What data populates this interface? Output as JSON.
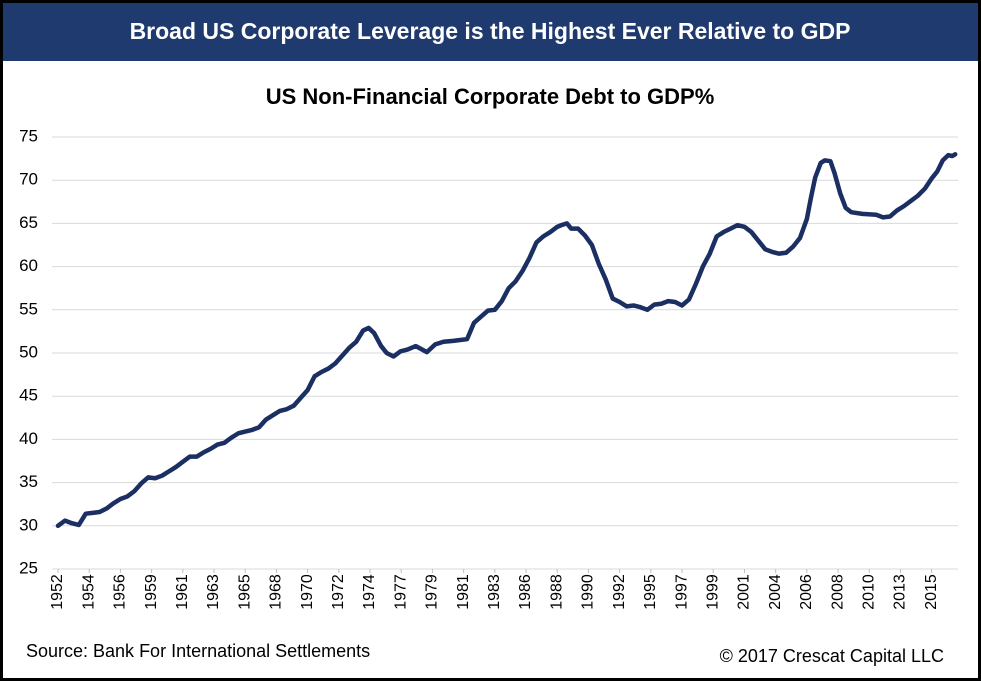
{
  "chart_data": {
    "type": "line",
    "banner": "Broad US Corporate Leverage is the Highest Ever Relative to GDP",
    "title": "US Non-Financial Corporate Debt to GDP%",
    "source": "Source: Bank For International Settlements",
    "copyright": "© 2017 Crescat Capital LLC",
    "x": [
      1952,
      1952.5,
      1953,
      1953.5,
      1954,
      1954.5,
      1955,
      1955.5,
      1956,
      1956.5,
      1957,
      1957.5,
      1958,
      1958.5,
      1959,
      1959.5,
      1960,
      1960.5,
      1961,
      1961.5,
      1962,
      1962.5,
      1963,
      1963.5,
      1964,
      1964.5,
      1965,
      1965.5,
      1966,
      1966.5,
      1967,
      1967.5,
      1968,
      1968.5,
      1969,
      1969.5,
      1970,
      1970.5,
      1971,
      1971.5,
      1972,
      1972.5,
      1973,
      1973.5,
      1974,
      1974.4,
      1974.8,
      1975.3,
      1975.7,
      1976.2,
      1976.7,
      1977.2,
      1977.8,
      1978.6,
      1979.2,
      1979.8,
      1980.5,
      1981,
      1981.5,
      1982,
      1982.5,
      1983,
      1983.5,
      1984,
      1984.5,
      1985,
      1985.5,
      1986,
      1986.5,
      1987,
      1987.5,
      1988,
      1988.3,
      1988.7,
      1989,
      1989.5,
      1990,
      1990.5,
      1991,
      1991.5,
      1992,
      1992.5,
      1993,
      1993.5,
      1994,
      1994.5,
      1995,
      1995.5,
      1996,
      1996.5,
      1997,
      1997.5,
      1998,
      1998.5,
      1999,
      1999.5,
      2000,
      2000.5,
      2001,
      2001.5,
      2002,
      2002.5,
      2003,
      2003.5,
      2004,
      2004.5,
      2005,
      2005.5,
      2006,
      2006.3,
      2006.6,
      2007,
      2007.3,
      2007.7,
      2008,
      2008.4,
      2008.8,
      2009.2,
      2010,
      2011,
      2011.5,
      2012,
      2012.5,
      2013,
      2013.5,
      2014,
      2014.5,
      2015,
      2015.4,
      2015.8,
      2016.2,
      2016.5,
      2016.7
    ],
    "series": [
      {
        "name": "US Non-Financial Corporate Debt to GDP%",
        "color": "#1b2f63",
        "values": [
          30.0,
          30.6,
          30.3,
          30.1,
          31.4,
          31.5,
          31.6,
          32.0,
          32.6,
          33.1,
          33.4,
          34.0,
          34.9,
          35.6,
          35.5,
          35.8,
          36.3,
          36.8,
          37.4,
          38.0,
          38.0,
          38.5,
          38.9,
          39.4,
          39.6,
          40.2,
          40.7,
          40.9,
          41.1,
          41.4,
          42.3,
          42.8,
          43.3,
          43.5,
          43.9,
          44.8,
          45.7,
          47.3,
          47.8,
          48.2,
          48.8,
          49.7,
          50.6,
          51.3,
          52.6,
          52.9,
          52.3,
          50.8,
          50.0,
          49.6,
          50.2,
          50.4,
          50.8,
          50.1,
          51.0,
          51.3,
          51.4,
          51.5,
          51.6,
          53.5,
          54.2,
          54.9,
          55.0,
          56.0,
          57.5,
          58.3,
          59.5,
          61.0,
          62.8,
          63.5,
          64.0,
          64.6,
          64.8,
          65.0,
          64.4,
          64.4,
          63.6,
          62.5,
          60.3,
          58.5,
          56.3,
          55.9,
          55.4,
          55.5,
          55.3,
          55.0,
          55.6,
          55.7,
          56.0,
          55.9,
          55.5,
          56.2,
          58.0,
          60.0,
          61.5,
          63.5,
          64.0,
          64.4,
          64.8,
          64.6,
          64.0,
          63.0,
          62.0,
          61.7,
          61.5,
          61.6,
          62.3,
          63.3,
          65.5,
          68.0,
          70.3,
          72.0,
          72.3,
          72.2,
          70.8,
          68.5,
          66.8,
          66.3,
          66.1,
          66.0,
          65.7,
          65.8,
          66.5,
          67.0,
          67.6,
          68.2,
          69.0,
          70.2,
          71.0,
          72.3,
          72.9,
          72.8,
          73.0
        ]
      }
    ],
    "xlim": [
      1952,
      2016.9
    ],
    "xticks": [
      1952,
      {
        "value": 1954.25,
        "label": "1954"
      },
      {
        "value": 1956.5,
        "label": "1956"
      },
      {
        "value": 1958.75,
        "label": "1959"
      },
      1961,
      {
        "value": 1963.25,
        "label": "1963"
      },
      {
        "value": 1965.5,
        "label": "1965"
      },
      {
        "value": 1967.75,
        "label": "1968"
      },
      1970,
      {
        "value": 1972.25,
        "label": "1972"
      },
      {
        "value": 1974.5,
        "label": "1974"
      },
      {
        "value": 1976.75,
        "label": "1977"
      },
      1979,
      {
        "value": 1981.25,
        "label": "1981"
      },
      {
        "value": 1983.5,
        "label": "1983"
      },
      {
        "value": 1985.75,
        "label": "1986"
      },
      1988,
      {
        "value": 1990.25,
        "label": "1990"
      },
      {
        "value": 1992.5,
        "label": "1992"
      },
      {
        "value": 1994.75,
        "label": "1995"
      },
      1997,
      {
        "value": 1999.25,
        "label": "1999"
      },
      {
        "value": 2001.5,
        "label": "2001"
      },
      {
        "value": 2003.75,
        "label": "2004"
      },
      2006,
      {
        "value": 2008.25,
        "label": "2008"
      },
      {
        "value": 2010.5,
        "label": "2010"
      },
      {
        "value": 2012.75,
        "label": "2013"
      },
      2015
    ],
    "ylim": [
      25,
      75
    ],
    "yticks": [
      25,
      30,
      35,
      40,
      45,
      50,
      55,
      60,
      65,
      70,
      75
    ],
    "grid": true
  }
}
